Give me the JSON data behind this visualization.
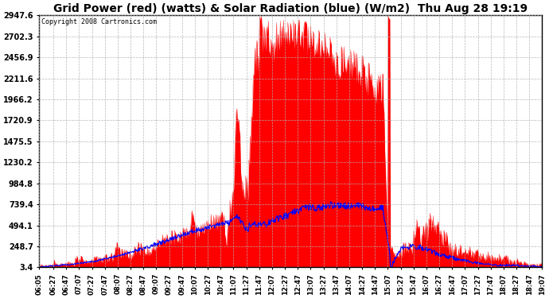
{
  "title": "Grid Power (red) (watts) & Solar Radiation (blue) (W/m2)  Thu Aug 28 19:19",
  "copyright": "Copyright 2008 Cartronics.com",
  "yticks": [
    3.4,
    248.7,
    494.1,
    739.4,
    984.8,
    1230.2,
    1475.5,
    1720.9,
    1966.2,
    2211.6,
    2456.9,
    2702.3,
    2947.6
  ],
  "ymin": 3.4,
  "ymax": 2947.6,
  "background_color": "#ffffff",
  "plot_bg_color": "#ffffff",
  "grid_color": "#b0b0b0",
  "title_fontsize": 10,
  "copyright_fontsize": 6,
  "xtick_fontsize": 6,
  "ytick_fontsize": 7,
  "xtick_labels": [
    "06:05",
    "06:27",
    "06:47",
    "07:07",
    "07:27",
    "07:47",
    "08:07",
    "08:27",
    "08:47",
    "09:07",
    "09:27",
    "09:47",
    "10:07",
    "10:27",
    "10:47",
    "11:07",
    "11:27",
    "11:47",
    "12:07",
    "12:27",
    "12:47",
    "13:07",
    "13:27",
    "13:47",
    "14:07",
    "14:27",
    "14:47",
    "15:07",
    "15:27",
    "15:47",
    "16:07",
    "16:27",
    "16:47",
    "17:07",
    "17:27",
    "17:47",
    "18:07",
    "18:27",
    "18:47",
    "19:07"
  ]
}
